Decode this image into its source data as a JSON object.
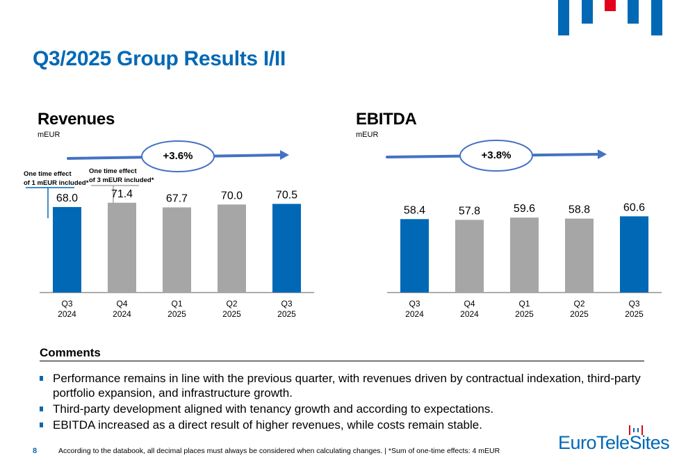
{
  "header": {
    "title": "Q3/2025 Group Results I/II",
    "logo_icon": "eurotelesites-bars-icon",
    "colors": {
      "brand_blue": "#0068b5",
      "brand_red": "#e2001a",
      "bar_grey": "#a6a6a6"
    }
  },
  "revenues": {
    "title": "Revenues",
    "unit": "mEUR",
    "growth": "+3.6%",
    "notes": [
      {
        "line1": "One time effect",
        "line2": "of 1 mEUR included*"
      },
      {
        "line1": "One time effect",
        "line2": "of 3 mEUR included*"
      }
    ]
  },
  "ebitda": {
    "title": "EBITDA",
    "unit": "mEUR",
    "growth": "+3.8%"
  },
  "chart_data": [
    {
      "type": "bar",
      "title": "Revenues",
      "ylabel": "mEUR",
      "categories": [
        [
          "Q3",
          "2024"
        ],
        [
          "Q4",
          "2024"
        ],
        [
          "Q1",
          "2025"
        ],
        [
          "Q2",
          "2025"
        ],
        [
          "Q3",
          "2025"
        ]
      ],
      "values": [
        68.0,
        71.4,
        67.7,
        70.0,
        70.5
      ],
      "value_labels": [
        "68.0",
        "71.4",
        "67.7",
        "70.0",
        "70.5"
      ],
      "highlight": [
        true,
        false,
        false,
        false,
        true
      ],
      "ylim": [
        0,
        80
      ],
      "grid": false,
      "annotation": "+3.6%"
    },
    {
      "type": "bar",
      "title": "EBITDA",
      "ylabel": "mEUR",
      "categories": [
        [
          "Q3",
          "2024"
        ],
        [
          "Q4",
          "2024"
        ],
        [
          "Q1",
          "2025"
        ],
        [
          "Q2",
          "2025"
        ],
        [
          "Q3",
          "2025"
        ]
      ],
      "values": [
        58.4,
        57.8,
        59.6,
        58.8,
        60.6
      ],
      "value_labels": [
        "58.4",
        "57.8",
        "59.6",
        "58.8",
        "60.6"
      ],
      "highlight": [
        true,
        false,
        false,
        false,
        true
      ],
      "ylim": [
        0,
        80
      ],
      "grid": false,
      "annotation": "+3.8%"
    }
  ],
  "comments": {
    "title": "Comments",
    "items": [
      "Performance remains in line with the previous quarter, with revenues driven by contractual indexation, third-party portfolio expansion, and infrastructure growth.",
      "Third-party development aligned with tenancy growth and according to expectations.",
      "EBITDA increased as a direct result of higher revenues, while costs remain stable."
    ]
  },
  "footer": {
    "page_number": "8",
    "note": "According to the databook, all decimal places must always be considered when calculating changes. | *Sum of one-time effects: 4 mEUR",
    "brand_text": "EuroTeleSites"
  }
}
